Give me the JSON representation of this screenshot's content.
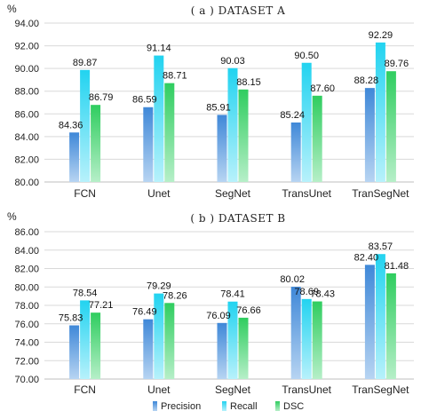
{
  "chart_data": [
    {
      "type": "bar",
      "title": "( a ) DATASET A",
      "ylabel": "%",
      "ylim": [
        80,
        94
      ],
      "yticks": [
        "80.00",
        "82.00",
        "84.00",
        "86.00",
        "88.00",
        "90.00",
        "92.00",
        "94.00"
      ],
      "grid": true,
      "categories": [
        "FCN",
        "Unet",
        "SegNet",
        "TransUnet",
        "TranSegNet"
      ],
      "series": [
        {
          "name": "Precision",
          "values": [
            84.36,
            86.59,
            85.91,
            85.24,
            88.28
          ]
        },
        {
          "name": "Recall",
          "values": [
            89.87,
            91.14,
            90.03,
            90.5,
            92.29
          ]
        },
        {
          "name": "DSC",
          "values": [
            86.79,
            88.71,
            88.15,
            87.6,
            89.76
          ]
        }
      ]
    },
    {
      "type": "bar",
      "title": "( b ) DATASET B",
      "ylabel": "%",
      "ylim": [
        70,
        86
      ],
      "yticks": [
        "70.00",
        "72.00",
        "74.00",
        "76.00",
        "78.00",
        "80.00",
        "82.00",
        "84.00",
        "86.00"
      ],
      "grid": true,
      "categories": [
        "FCN",
        "Unet",
        "SegNet",
        "TransUnet",
        "TranSegNet"
      ],
      "series": [
        {
          "name": "Precision",
          "values": [
            75.83,
            76.49,
            76.09,
            80.02,
            82.4
          ]
        },
        {
          "name": "Recall",
          "values": [
            78.54,
            79.29,
            78.41,
            78.69,
            83.57
          ]
        },
        {
          "name": "DSC",
          "values": [
            77.21,
            78.26,
            76.66,
            78.43,
            81.48
          ]
        }
      ]
    }
  ],
  "legend": {
    "position": "bottom-center",
    "items": [
      {
        "name": "Precision",
        "color": "#5b9bd5"
      },
      {
        "name": "Recall",
        "color": "#4dd9f2"
      },
      {
        "name": "DSC",
        "color": "#4fd47a"
      }
    ]
  },
  "colors": {
    "precision_top": "#3f88d8",
    "precision_bottom": "#b7d4f2",
    "recall_top": "#22d3f0",
    "recall_bottom": "#b7f1fb",
    "dsc_top": "#2fcd5f",
    "dsc_bottom": "#b6efc8"
  }
}
